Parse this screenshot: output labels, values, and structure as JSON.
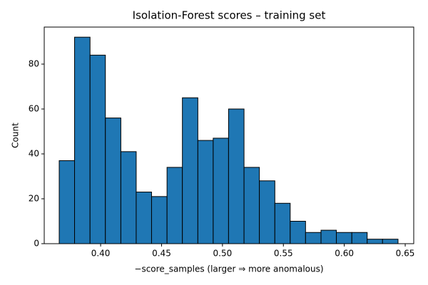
{
  "chart_data": {
    "type": "histogram",
    "title": "Isolation-Forest scores – training set",
    "x_label": "−score_samples  (larger ⇒ more anomalous)",
    "y_label": "Count",
    "bins": [
      0.366,
      0.3786,
      0.3913,
      0.4039,
      0.4166,
      0.4292,
      0.4418,
      0.4545,
      0.4671,
      0.4798,
      0.4924,
      0.505,
      0.5177,
      0.5303,
      0.543,
      0.5556,
      0.5682,
      0.5809,
      0.5935,
      0.6062,
      0.6188,
      0.6314,
      0.6441
    ],
    "counts": [
      37,
      92,
      84,
      56,
      41,
      23,
      21,
      34,
      65,
      46,
      47,
      60,
      34,
      28,
      18,
      10,
      5,
      6,
      5,
      5,
      2,
      2
    ],
    "color": "#1f77b4",
    "edgecolor": "#000000",
    "xlim": [
      0.3537,
      0.657
    ],
    "ylim": [
      0,
      96.5
    ],
    "xticks": [
      {
        "value": 0.4,
        "label": "0.40"
      },
      {
        "value": 0.45,
        "label": "0.45"
      },
      {
        "value": 0.5,
        "label": "0.50"
      },
      {
        "value": 0.55,
        "label": "0.55"
      },
      {
        "value": 0.6,
        "label": "0.60"
      },
      {
        "value": 0.65,
        "label": "0.65"
      }
    ],
    "yticks": [
      0,
      20,
      40,
      60,
      80
    ],
    "grid": false
  }
}
